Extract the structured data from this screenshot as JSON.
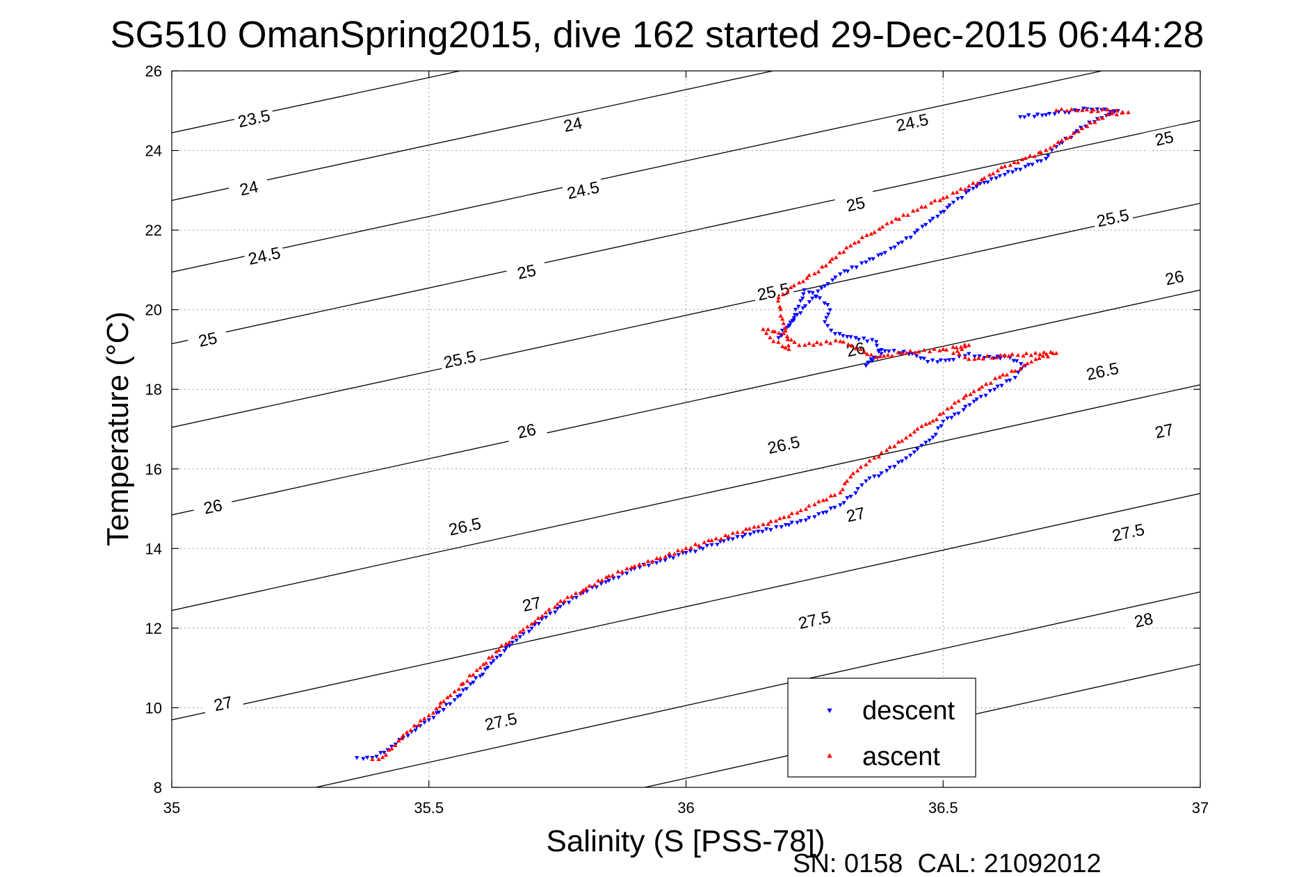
{
  "chart_data": {
    "type": "scatter",
    "title": "SG510 OmanSpring2015, dive 162 started 29-Dec-2015 06:44:28",
    "xlabel": "Salinity (S [PSS-78])",
    "ylabel": "Temperature (°C)",
    "footer": "SN: 0158  CAL: 21092012",
    "xlim": [
      35,
      37
    ],
    "ylim": [
      8,
      26
    ],
    "xticks": [
      "35",
      "35.5",
      "36",
      "36.5",
      "37"
    ],
    "yticks": [
      "8",
      "10",
      "12",
      "14",
      "16",
      "18",
      "20",
      "22",
      "24",
      "26"
    ],
    "grid": true,
    "legend_position": "bottom-right",
    "colors": {
      "descent": "#0000ff",
      "ascent": "#ff0000",
      "contour": "#000000"
    },
    "series": [
      {
        "name": "descent",
        "marker": "triangle-down",
        "points": [
          [
            35.36,
            8.75
          ],
          [
            35.39,
            8.75
          ],
          [
            35.42,
            8.95
          ],
          [
            35.45,
            9.25
          ],
          [
            35.5,
            9.7
          ],
          [
            35.55,
            10.2
          ],
          [
            35.6,
            10.8
          ],
          [
            35.65,
            11.5
          ],
          [
            35.7,
            12.0
          ],
          [
            35.75,
            12.5
          ],
          [
            35.8,
            12.9
          ],
          [
            35.85,
            13.2
          ],
          [
            35.9,
            13.5
          ],
          [
            35.95,
            13.7
          ],
          [
            36.0,
            13.9
          ],
          [
            36.05,
            14.1
          ],
          [
            36.1,
            14.3
          ],
          [
            36.2,
            14.6
          ],
          [
            36.25,
            14.8
          ],
          [
            36.3,
            15.1
          ],
          [
            36.33,
            15.4
          ],
          [
            36.35,
            15.7
          ],
          [
            36.38,
            15.9
          ],
          [
            36.42,
            16.2
          ],
          [
            36.45,
            16.5
          ],
          [
            36.48,
            16.8
          ],
          [
            36.5,
            17.2
          ],
          [
            36.53,
            17.4
          ],
          [
            36.56,
            17.7
          ],
          [
            36.6,
            18.0
          ],
          [
            36.64,
            18.3
          ],
          [
            36.66,
            18.6
          ],
          [
            36.63,
            18.8
          ],
          [
            36.58,
            18.8
          ],
          [
            36.55,
            18.9
          ],
          [
            36.52,
            18.75
          ],
          [
            36.47,
            18.7
          ],
          [
            36.44,
            18.9
          ],
          [
            36.38,
            19.0
          ],
          [
            36.35,
            18.6
          ],
          [
            36.38,
            18.9
          ],
          [
            36.37,
            19.2
          ],
          [
            36.33,
            19.3
          ],
          [
            36.29,
            19.4
          ],
          [
            36.27,
            19.7
          ],
          [
            36.28,
            20.0
          ],
          [
            36.26,
            20.3
          ],
          [
            36.23,
            20.5
          ],
          [
            36.21,
            19.8
          ],
          [
            36.18,
            19.3
          ],
          [
            36.2,
            19.6
          ],
          [
            36.24,
            20.2
          ],
          [
            36.27,
            20.6
          ],
          [
            36.3,
            20.9
          ],
          [
            36.35,
            21.2
          ],
          [
            36.38,
            21.4
          ],
          [
            36.42,
            21.7
          ],
          [
            36.45,
            22.0
          ],
          [
            36.48,
            22.3
          ],
          [
            36.52,
            22.7
          ],
          [
            36.55,
            23.0
          ],
          [
            36.58,
            23.2
          ],
          [
            36.62,
            23.4
          ],
          [
            36.66,
            23.6
          ],
          [
            36.7,
            23.8
          ],
          [
            36.72,
            24.1
          ],
          [
            36.76,
            24.5
          ],
          [
            36.8,
            24.8
          ],
          [
            36.84,
            25.0
          ],
          [
            36.78,
            25.05
          ],
          [
            36.7,
            24.9
          ],
          [
            36.65,
            24.85
          ]
        ]
      },
      {
        "name": "ascent",
        "marker": "triangle-up",
        "points": [
          [
            35.39,
            8.7
          ],
          [
            35.41,
            8.75
          ],
          [
            35.45,
            9.3
          ],
          [
            35.5,
            9.8
          ],
          [
            35.55,
            10.4
          ],
          [
            35.6,
            11.0
          ],
          [
            35.65,
            11.6
          ],
          [
            35.7,
            12.1
          ],
          [
            35.75,
            12.6
          ],
          [
            35.8,
            12.95
          ],
          [
            35.85,
            13.3
          ],
          [
            35.9,
            13.55
          ],
          [
            35.95,
            13.75
          ],
          [
            36.0,
            14.0
          ],
          [
            36.05,
            14.2
          ],
          [
            36.1,
            14.4
          ],
          [
            36.15,
            14.6
          ],
          [
            36.2,
            14.8
          ],
          [
            36.25,
            15.1
          ],
          [
            36.3,
            15.4
          ],
          [
            36.32,
            15.8
          ],
          [
            36.35,
            16.1
          ],
          [
            36.38,
            16.4
          ],
          [
            36.42,
            16.7
          ],
          [
            36.45,
            17.0
          ],
          [
            36.48,
            17.2
          ],
          [
            36.5,
            17.4
          ],
          [
            36.53,
            17.7
          ],
          [
            36.57,
            18.0
          ],
          [
            36.61,
            18.3
          ],
          [
            36.65,
            18.5
          ],
          [
            36.68,
            18.75
          ],
          [
            36.72,
            18.9
          ],
          [
            36.62,
            18.85
          ],
          [
            36.55,
            18.75
          ],
          [
            36.52,
            18.9
          ],
          [
            36.55,
            19.1
          ],
          [
            36.5,
            19.0
          ],
          [
            36.42,
            18.9
          ],
          [
            36.37,
            18.8
          ],
          [
            36.34,
            19.0
          ],
          [
            36.3,
            19.2
          ],
          [
            36.22,
            19.1
          ],
          [
            36.19,
            19.4
          ],
          [
            36.15,
            19.5
          ],
          [
            36.17,
            19.2
          ],
          [
            36.2,
            19.0
          ],
          [
            36.18,
            20.3
          ],
          [
            36.21,
            20.6
          ],
          [
            36.25,
            20.9
          ],
          [
            36.28,
            21.2
          ],
          [
            36.32,
            21.6
          ],
          [
            36.36,
            21.9
          ],
          [
            36.4,
            22.2
          ],
          [
            36.45,
            22.5
          ],
          [
            36.5,
            22.8
          ],
          [
            36.55,
            23.1
          ],
          [
            36.58,
            23.3
          ],
          [
            36.62,
            23.6
          ],
          [
            36.66,
            23.8
          ],
          [
            36.7,
            24.0
          ],
          [
            36.74,
            24.3
          ],
          [
            36.78,
            24.6
          ],
          [
            36.82,
            24.9
          ],
          [
            36.86,
            24.95
          ],
          [
            36.82,
            25.02
          ],
          [
            36.76,
            25.0
          ],
          [
            36.72,
            25.0
          ]
        ]
      }
    ],
    "contours": [
      {
        "label": "23.5",
        "anchor": [
          35.002,
          24.45
        ],
        "slope": 0.2775
      },
      {
        "label": "24",
        "anchor": [
          35.002,
          22.75
        ],
        "slope": 0.2785
      },
      {
        "label": "24.5",
        "anchor": [
          35.002,
          20.95
        ],
        "slope": 0.2795
      },
      {
        "label": "25",
        "anchor": [
          35.002,
          19.15
        ],
        "slope": 0.2805
      },
      {
        "label": "25.5",
        "anchor": [
          35.002,
          17.05
        ],
        "slope": 0.2815
      },
      {
        "label": "26",
        "anchor": [
          35.002,
          14.85
        ],
        "slope": 0.2825
      },
      {
        "label": "26.5",
        "anchor": [
          35.002,
          12.45
        ],
        "slope": 0.2835
      },
      {
        "label": "27",
        "anchor": [
          35.002,
          9.7
        ],
        "slope": 0.2845
      },
      {
        "label": "27.5",
        "anchor": [
          35.28,
          8.0
        ],
        "slope": 0.2855
      },
      {
        "label": "28",
        "anchor": [
          35.92,
          8.0
        ],
        "slope": 0.2865
      }
    ],
    "contour_labels": [
      {
        "text": "23.5",
        "x": 35.16,
        "y": 24.8
      },
      {
        "text": "24",
        "x": 35.78,
        "y": 24.65
      },
      {
        "text": "24.5",
        "x": 36.44,
        "y": 24.7
      },
      {
        "text": "25",
        "x": 36.93,
        "y": 24.3
      },
      {
        "text": "24",
        "x": 35.15,
        "y": 23.05
      },
      {
        "text": "24.5",
        "x": 35.8,
        "y": 23.0
      },
      {
        "text": "25",
        "x": 36.33,
        "y": 22.65
      },
      {
        "text": "25.5",
        "x": 36.83,
        "y": 22.3
      },
      {
        "text": "24.5",
        "x": 35.18,
        "y": 21.35
      },
      {
        "text": "25",
        "x": 35.69,
        "y": 20.95
      },
      {
        "text": "25.5",
        "x": 36.17,
        "y": 20.45
      },
      {
        "text": "26",
        "x": 36.95,
        "y": 20.8
      },
      {
        "text": "25",
        "x": 35.07,
        "y": 19.25
      },
      {
        "text": "25.5",
        "x": 35.56,
        "y": 18.75
      },
      {
        "text": "26",
        "x": 36.33,
        "y": 19.0
      },
      {
        "text": "26.5",
        "x": 36.81,
        "y": 18.45
      },
      {
        "text": "26",
        "x": 35.69,
        "y": 16.95
      },
      {
        "text": "26.5",
        "x": 36.19,
        "y": 16.6
      },
      {
        "text": "27",
        "x": 36.93,
        "y": 16.95
      },
      {
        "text": "26",
        "x": 35.08,
        "y": 15.05
      },
      {
        "text": "26.5",
        "x": 35.57,
        "y": 14.55
      },
      {
        "text": "27",
        "x": 36.33,
        "y": 14.85
      },
      {
        "text": "27.5",
        "x": 36.86,
        "y": 14.4
      },
      {
        "text": "27",
        "x": 35.7,
        "y": 12.6
      },
      {
        "text": "27.5",
        "x": 36.25,
        "y": 12.2
      },
      {
        "text": "28",
        "x": 36.89,
        "y": 12.2
      },
      {
        "text": "27",
        "x": 35.1,
        "y": 10.1
      },
      {
        "text": "27.5",
        "x": 35.64,
        "y": 9.65
      }
    ]
  }
}
